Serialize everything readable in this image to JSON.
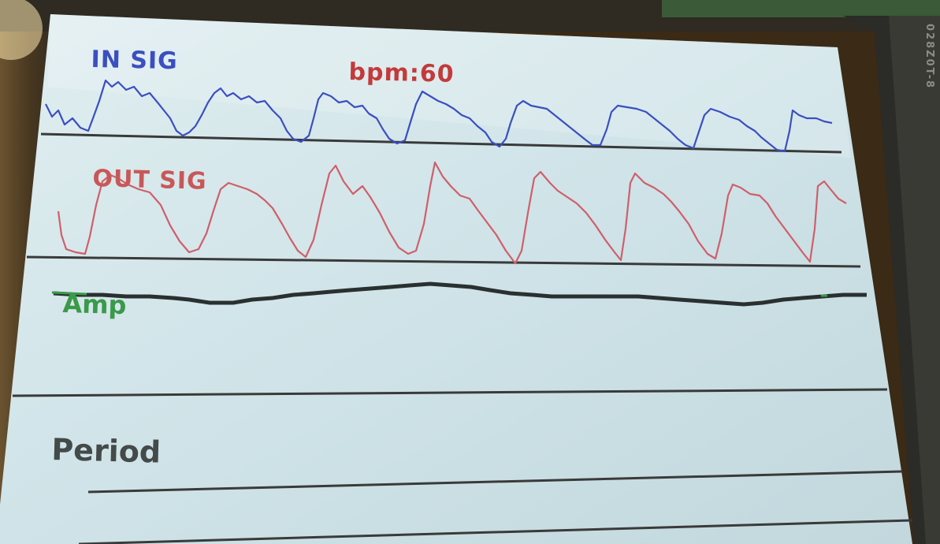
{
  "screen": {
    "in_label": "IN SIG",
    "bpm_text": "bpm:60",
    "out_label": "OUT SIG",
    "amp_label": "Amp",
    "period_label": "Period"
  },
  "pcb": {
    "model_text": "028Z0T-8"
  },
  "colors": {
    "in_signal": "#3a4fc0",
    "out_signal": "#cf5f6a",
    "amp_line": "#2a3030",
    "amp_accent": "#3a9a4a",
    "screen_bg": "#cfe2e6",
    "divider": "#3a3a3a"
  },
  "chart_data": [
    {
      "type": "line",
      "title": "IN SIG",
      "series": [
        {
          "name": "IN SIG",
          "values": [
            0.1,
            0.2,
            0.9,
            0.7,
            0.2,
            0.9,
            0.6,
            0.2,
            0.9,
            0.6,
            0.2,
            0.9,
            0.6,
            0.2,
            0.9,
            0.6,
            0.2,
            0.9,
            0.6,
            0.2,
            0.9,
            0.6,
            0.2,
            0.9,
            0.6,
            0.2,
            0.8,
            0.6
          ]
        }
      ]
    },
    {
      "type": "line",
      "title": "OUT SIG",
      "series": [
        {
          "name": "OUT SIG",
          "values": [
            0.3,
            0.1,
            0.9,
            0.7,
            0.1,
            0.9,
            0.6,
            0.1,
            0.9,
            0.6,
            0.1,
            0.9,
            0.6,
            0.1,
            0.9,
            0.6,
            0.1,
            0.9,
            0.6,
            0.1,
            0.9,
            0.6,
            0.1,
            0.9,
            0.6,
            0.1,
            0.9,
            0.7
          ]
        }
      ]
    },
    {
      "type": "line",
      "title": "Amp",
      "series": [
        {
          "name": "Amp",
          "values": [
            0.5,
            0.45,
            0.4,
            0.42,
            0.5,
            0.6,
            0.68,
            0.72,
            0.7,
            0.62,
            0.56,
            0.52,
            0.5,
            0.44,
            0.4,
            0.42,
            0.5,
            0.55
          ]
        }
      ]
    }
  ]
}
